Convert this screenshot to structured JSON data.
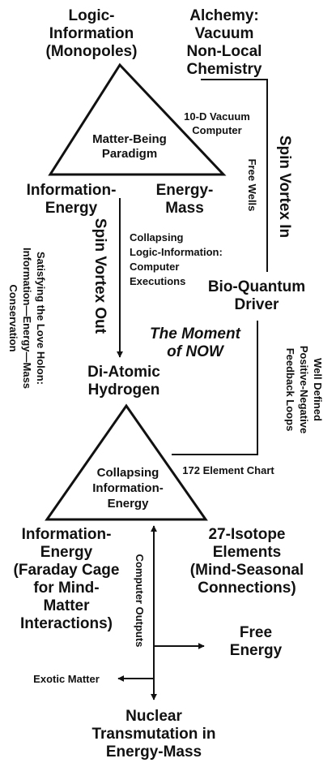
{
  "nodes": {
    "logic_info": [
      "Logic-",
      "Information",
      "(Monopoles)"
    ],
    "alchemy": [
      "Alchemy:",
      "Vacuum",
      "Non-Local",
      "Chemistry"
    ],
    "matter_being": [
      "Matter-Being",
      "Paradigm"
    ],
    "info_energy_top": [
      "Information-",
      "Energy"
    ],
    "energy_mass": [
      "Energy-",
      "Mass"
    ],
    "bio_quantum": [
      "Bio-Quantum",
      "Driver"
    ],
    "moment_now": [
      "The Moment",
      "of NOW"
    ],
    "di_atomic": [
      "Di-Atomic",
      "Hydrogen"
    ],
    "collapsing_ie": [
      "Collapsing",
      "Information-",
      "Energy"
    ],
    "info_energy_faraday": [
      "Information-",
      "Energy",
      "(Faraday Cage",
      "for Mind-",
      "Matter",
      "Interactions)"
    ],
    "isotope": [
      "27-Isotope",
      "Elements",
      "(Mind-Seasonal",
      "Connections)"
    ],
    "free_energy": [
      "Free",
      "Energy"
    ],
    "exotic_matter": "Exotic Matter",
    "nuclear": [
      "Nuclear",
      "Transmutation in",
      "Energy-Mass"
    ]
  },
  "edge_labels": {
    "vacuum_computer": [
      "10-D Vacuum",
      "Computer"
    ],
    "free_wells": "Free Wells",
    "spin_vortex_in": "Spin Vortex In",
    "spin_vortex_out": "Spin Vortex Out",
    "collapsing_logic": [
      "Collapsing",
      "Logic-Information:",
      "Computer",
      "Executions"
    ],
    "love_holon": [
      "Satisfying the Love Holon:",
      "Information—Energy—Mass",
      "Conservation"
    ],
    "feedback_loops": [
      "Well Defined",
      "Positive-Negative",
      "Feedback Loops"
    ],
    "element_chart": "172 Element Chart",
    "computer_outputs": "Computer Outputs"
  }
}
